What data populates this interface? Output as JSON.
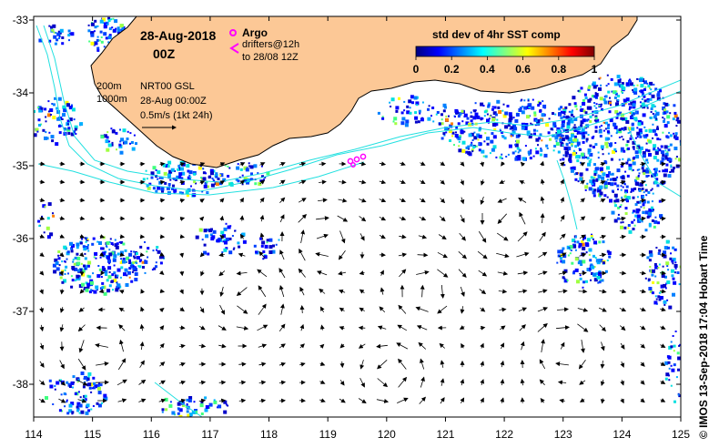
{
  "header": {
    "date": "28-Aug-2018",
    "time": "00Z",
    "argo_label": "Argo",
    "drifters_label": "drifters@12h",
    "drifters_range": "to 28/08 12Z",
    "product_line": "NRT00 GSL",
    "product_date": "28-Aug 00:00Z",
    "scale_label": "0.5m/s (1kt 24h)",
    "isobath_200": "200m",
    "isobath_1000": "1000m"
  },
  "colorbar": {
    "title": "std dev of 4hr SST comp",
    "ticks": [
      "0",
      "0.2",
      "0.4",
      "0.6",
      "0.8",
      "1"
    ],
    "stops": [
      "#00007f",
      "#0000ff",
      "#0080ff",
      "#00ffff",
      "#80ff80",
      "#ffff00",
      "#ff8000",
      "#ff0000",
      "#7f0000"
    ]
  },
  "axes": {
    "x_ticks": [
      "114",
      "115",
      "116",
      "117",
      "118",
      "119",
      "120",
      "121",
      "122",
      "123",
      "124",
      "125"
    ],
    "y_ticks": [
      "-33",
      "-34",
      "-35",
      "-36",
      "-37",
      "-38"
    ]
  },
  "credit": "© IMOS 13-Sep-2018 17:04 Hobart Time",
  "colors": {
    "land": "#fcc896",
    "isobath": "#22e0e0",
    "argo": "#ff00ff"
  }
}
